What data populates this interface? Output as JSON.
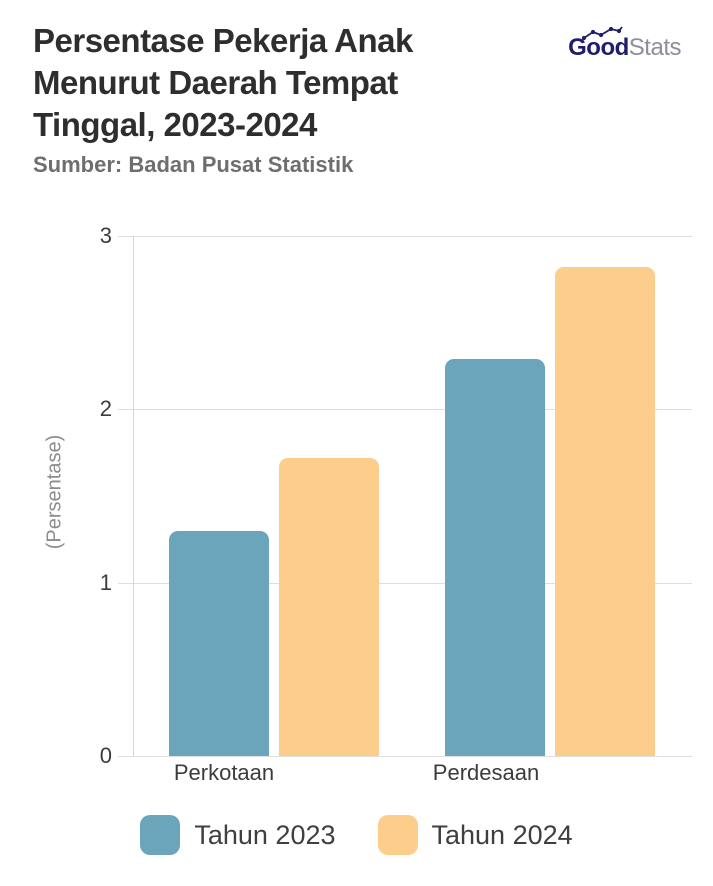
{
  "header": {
    "title": "Persentase Pekerja Anak Menurut Daerah Tempat Tinggal, 2023-2024",
    "source": "Sumber: Badan Pusat Statistik",
    "logo": {
      "part1": "Good",
      "part2": "Stats",
      "color1": "#211d6e",
      "color2": "#8e8e9a"
    }
  },
  "chart_data": {
    "type": "bar",
    "title": "Persentase Pekerja Anak Menurut Daerah Tempat Tinggal, 2023-2024",
    "categories": [
      "Perkotaan",
      "Perdesaan"
    ],
    "series": [
      {
        "name": "Tahun 2023",
        "color": "#6BA5BB",
        "values": [
          1.3,
          2.29
        ]
      },
      {
        "name": "Tahun 2024",
        "color": "#FCCD8B",
        "values": [
          1.72,
          2.82
        ]
      }
    ],
    "xlabel": "",
    "ylabel": "(Persentase)",
    "yticks": [
      0,
      1,
      2,
      3
    ],
    "ylim": [
      0,
      3
    ],
    "grid": true,
    "legend_position": "bottom",
    "grid_color": "#dedede"
  }
}
